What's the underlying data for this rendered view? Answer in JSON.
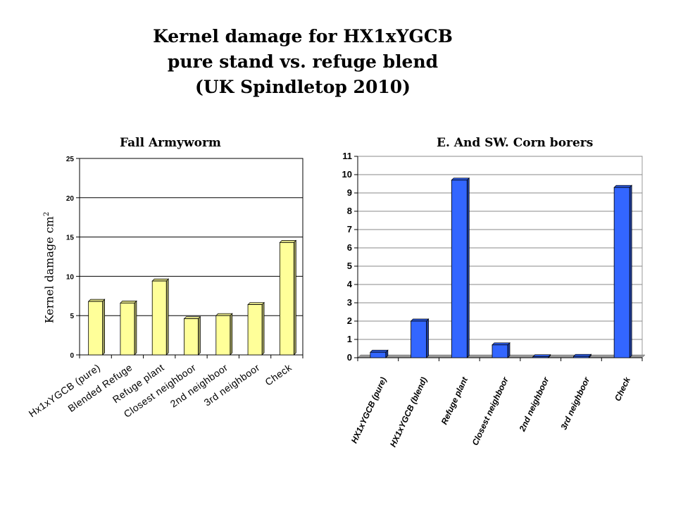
{
  "title": {
    "line1": "Kernel damage for HX1xYGCB",
    "line2": "pure stand vs. refuge blend",
    "line3": "(UK Spindletop 2010)"
  },
  "y_axis_label": "Kernel damage cm",
  "y_axis_label_sup": "2",
  "colors": {
    "left_bar_fill": "#ffff99",
    "right_bar_fill": "#3366ff",
    "right_plot_bg": "#ffffff",
    "gridline": "#000000"
  },
  "chart_data": [
    {
      "type": "bar",
      "title": "Fall Armyworm",
      "categories": [
        "Hx1xYGCB (pure)",
        "Blended Refuge",
        "Refuge plant",
        "Closest neighboor",
        "2nd neighboor",
        "3rd neighboor",
        "Check"
      ],
      "values": [
        6.8,
        6.6,
        9.4,
        4.6,
        5.0,
        6.4,
        14.3
      ],
      "ylim": [
        0,
        25
      ],
      "yticks": [
        0,
        5,
        10,
        15,
        20,
        25
      ],
      "grid": true,
      "style": "3d"
    },
    {
      "type": "bar",
      "title": "E. And SW. Corn borers",
      "categories": [
        "HX1xYGCB (pure)",
        "HX1xYGCB (blend)",
        "Refuge plant",
        "Closest neighboor",
        "2nd neighboor",
        "3rd neighboor",
        "Check"
      ],
      "values": [
        0.3,
        2.0,
        9.7,
        0.7,
        0.05,
        0.07,
        9.3
      ],
      "ylim": [
        0,
        11
      ],
      "yticks": [
        0,
        1,
        2,
        3,
        4,
        5,
        6,
        7,
        8,
        9,
        10,
        11
      ],
      "grid": true,
      "style": "3d"
    }
  ]
}
